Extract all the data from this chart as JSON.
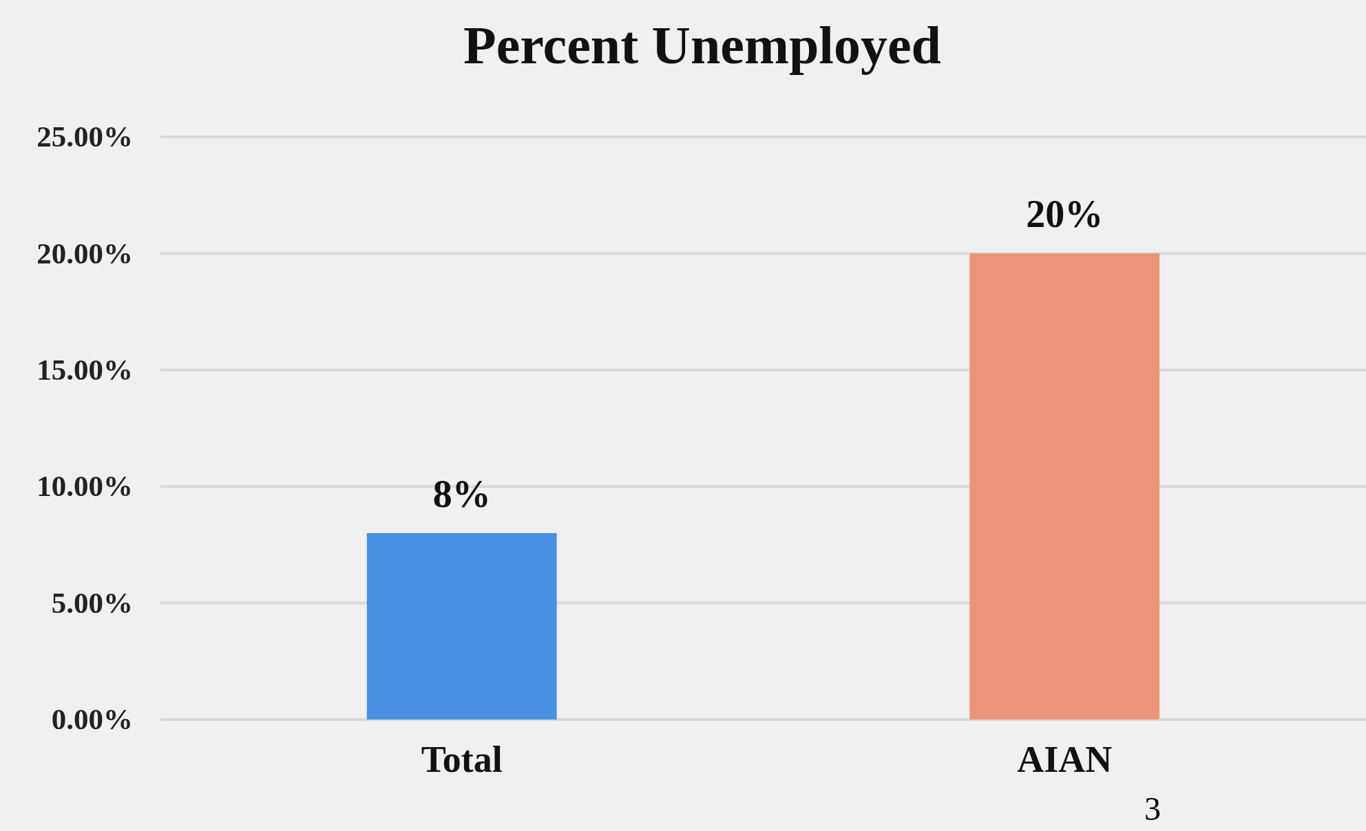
{
  "chart_data": {
    "type": "bar",
    "title": "Percent Unemployed",
    "categories": [
      "Total",
      "AIAN"
    ],
    "values": [
      8,
      20
    ],
    "colors": [
      "#4a90e2",
      "#ed937a"
    ],
    "value_labels": [
      "8%",
      "20%"
    ],
    "ylim": [
      0,
      25
    ],
    "yticks": [
      {
        "value": 0,
        "label": "0.00%"
      },
      {
        "value": 5,
        "label": "5.00%"
      },
      {
        "value": 10,
        "label": "10.00%"
      },
      {
        "value": 15,
        "label": "15.00%"
      },
      {
        "value": 20,
        "label": "20.00%"
      },
      {
        "value": 25,
        "label": "25.00%"
      }
    ],
    "grid": "y",
    "annotations": [
      "3"
    ]
  }
}
